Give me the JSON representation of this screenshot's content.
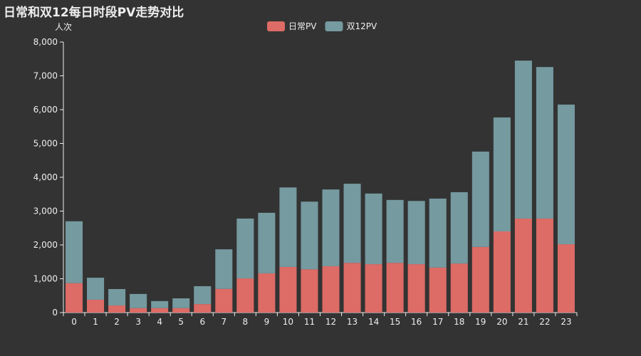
{
  "chart_data": {
    "type": "bar",
    "stacked": true,
    "title": "日常和双12每日时段PV走势对比",
    "xlabel": "",
    "ylabel": "人次",
    "ylim": [
      0,
      8000
    ],
    "yticks": [
      "0",
      "1,000",
      "2,000",
      "3,000",
      "4,000",
      "5,000",
      "6,000",
      "7,000",
      "8,000"
    ],
    "yticks_values": [
      0,
      1000,
      2000,
      3000,
      4000,
      5000,
      6000,
      7000,
      8000
    ],
    "legend_position": "top-center",
    "grid": false,
    "categories": [
      "0",
      "1",
      "2",
      "3",
      "4",
      "5",
      "6",
      "7",
      "8",
      "9",
      "10",
      "11",
      "12",
      "13",
      "14",
      "15",
      "16",
      "17",
      "18",
      "19",
      "20",
      "21",
      "22",
      "23"
    ],
    "series": [
      {
        "name": "日常PV",
        "color": "#dd6b66",
        "values": [
          870,
          380,
          210,
          130,
          130,
          130,
          250,
          700,
          1010,
          1160,
          1350,
          1280,
          1370,
          1470,
          1430,
          1470,
          1430,
          1330,
          1450,
          1940,
          2400,
          2780,
          2780,
          2020
        ]
      },
      {
        "name": "双12PV",
        "color": "#759aa0",
        "values": [
          1830,
          650,
          485,
          420,
          210,
          290,
          530,
          1170,
          1770,
          1790,
          2350,
          2000,
          2270,
          2340,
          2090,
          1860,
          1870,
          2040,
          2110,
          2820,
          3370,
          4670,
          4480,
          4130
        ]
      }
    ]
  }
}
